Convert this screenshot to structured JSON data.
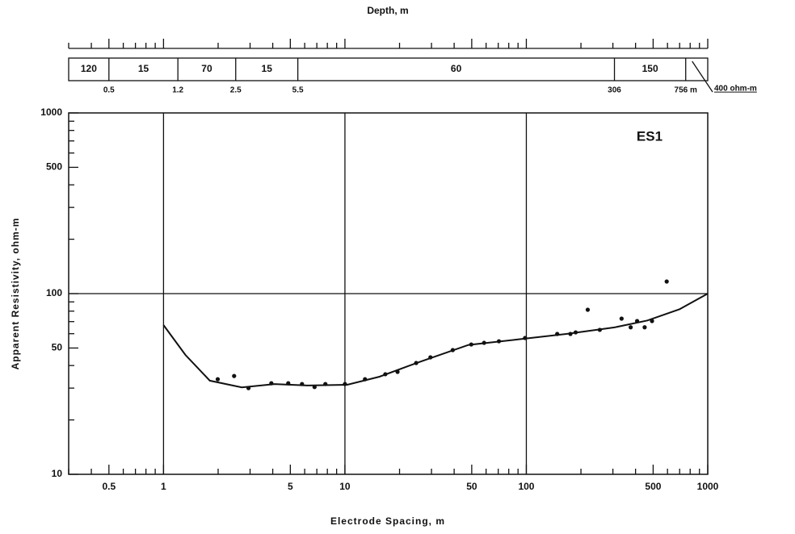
{
  "chart_data": {
    "type": "scatter",
    "title": "Depth, m",
    "xlabel": "Electrode Spacing, m",
    "ylabel": "Apparent Resistivity, ohm-m",
    "annotation": "ES1",
    "log_x": true,
    "log_y": true,
    "grid": true,
    "color": "#111111",
    "xlim": [
      0.3,
      1000
    ],
    "ylim": [
      10,
      1000
    ],
    "xticks": [
      0.5,
      1,
      5,
      10,
      50,
      100,
      500,
      1000
    ],
    "yticks": [
      10,
      50,
      100,
      500,
      1000
    ],
    "xgrid": [
      1,
      10,
      100
    ],
    "ygrid": [
      100
    ],
    "xminor": [
      0.3,
      0.4,
      0.6,
      0.7,
      0.8,
      0.9,
      2,
      3,
      4,
      6,
      7,
      8,
      9,
      20,
      30,
      40,
      60,
      70,
      80,
      90,
      200,
      300,
      400,
      600,
      700,
      800,
      900
    ],
    "yminor": [
      20,
      30,
      40,
      60,
      70,
      80,
      90,
      200,
      300,
      400,
      600,
      700,
      800,
      900
    ],
    "layers": {
      "resistivities": [
        120,
        15,
        70,
        15,
        60,
        150
      ],
      "depths": [
        0.5,
        1.2,
        2.5,
        5.5,
        306,
        {
          "value": 756,
          "label": "756 m"
        }
      ],
      "basement_label": "400 ohm-m"
    },
    "series": [
      {
        "type": "scatter",
        "x": [
          1.99,
          2.45,
          2.94,
          3.93,
          4.87,
          5.8,
          6.8,
          7.8,
          10.0,
          12.9,
          16.7,
          19.5,
          24.7,
          29.6,
          39.3,
          49.7,
          58.5,
          70.6,
          98.4,
          148,
          175,
          187,
          218,
          254,
          335,
          376,
          408,
          449,
          493,
          594
        ],
        "values": [
          33.6,
          35.0,
          30.0,
          31.9,
          31.9,
          31.6,
          30.4,
          31.6,
          31.6,
          33.6,
          35.8,
          36.9,
          41.3,
          44.4,
          48.7,
          52.3,
          53.4,
          54.5,
          56.8,
          59.8,
          59.8,
          61.0,
          81.4,
          63.0,
          72.7,
          65.1,
          70.5,
          65.1,
          70.5,
          116.7
        ]
      },
      {
        "type": "line",
        "x": [
          1,
          1.32,
          1.8,
          2.7,
          4.1,
          6.2,
          10.3,
          15.5,
          26,
          48,
          89,
          166,
          306,
          465,
          700,
          1000
        ],
        "values": [
          67,
          45.8,
          33,
          30.3,
          31.6,
          31,
          31.3,
          34.7,
          42,
          52,
          55.7,
          59.8,
          65,
          71,
          82,
          100
        ]
      }
    ]
  }
}
